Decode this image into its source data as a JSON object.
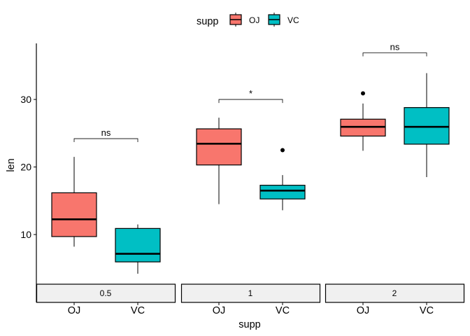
{
  "chart_data": {
    "type": "boxplot",
    "xlabel": "supp",
    "ylabel": "len",
    "ylim": [
      2.75,
      38.3
    ],
    "yticks": [
      10,
      20,
      30
    ],
    "grid": false,
    "legend": {
      "title": "supp",
      "position": "top",
      "entries": [
        "OJ",
        "VC"
      ]
    },
    "colors": {
      "OJ": "#F8766D",
      "VC": "#00BFC4"
    },
    "panels": [
      {
        "label": "0.5",
        "boxes": [
          {
            "group": "OJ",
            "min": 8.2,
            "q1": 9.7,
            "median": 12.25,
            "q3": 16.18,
            "max": 21.5,
            "outliers": []
          },
          {
            "group": "VC",
            "min": 4.2,
            "q1": 5.95,
            "median": 7.15,
            "q3": 10.9,
            "max": 11.5,
            "outliers": []
          }
        ],
        "bracket": {
          "y": 24.2,
          "label": "ns"
        }
      },
      {
        "label": "1",
        "boxes": [
          {
            "group": "OJ",
            "min": 14.5,
            "q1": 20.3,
            "median": 23.45,
            "q3": 25.65,
            "max": 27.3,
            "outliers": []
          },
          {
            "group": "VC",
            "min": 13.6,
            "q1": 15.27,
            "median": 16.5,
            "q3": 17.3,
            "max": 18.8,
            "outliers": [
              22.5
            ]
          }
        ],
        "bracket": {
          "y": 30.0,
          "label": "*"
        }
      },
      {
        "label": "2",
        "boxes": [
          {
            "group": "OJ",
            "min": 22.4,
            "q1": 24.58,
            "median": 25.95,
            "q3": 27.08,
            "max": 29.4,
            "outliers": [
              30.9
            ]
          },
          {
            "group": "VC",
            "min": 18.5,
            "q1": 23.38,
            "median": 25.95,
            "q3": 28.8,
            "max": 33.9,
            "outliers": []
          }
        ],
        "bracket": {
          "y": 36.9,
          "label": "ns"
        }
      }
    ]
  }
}
